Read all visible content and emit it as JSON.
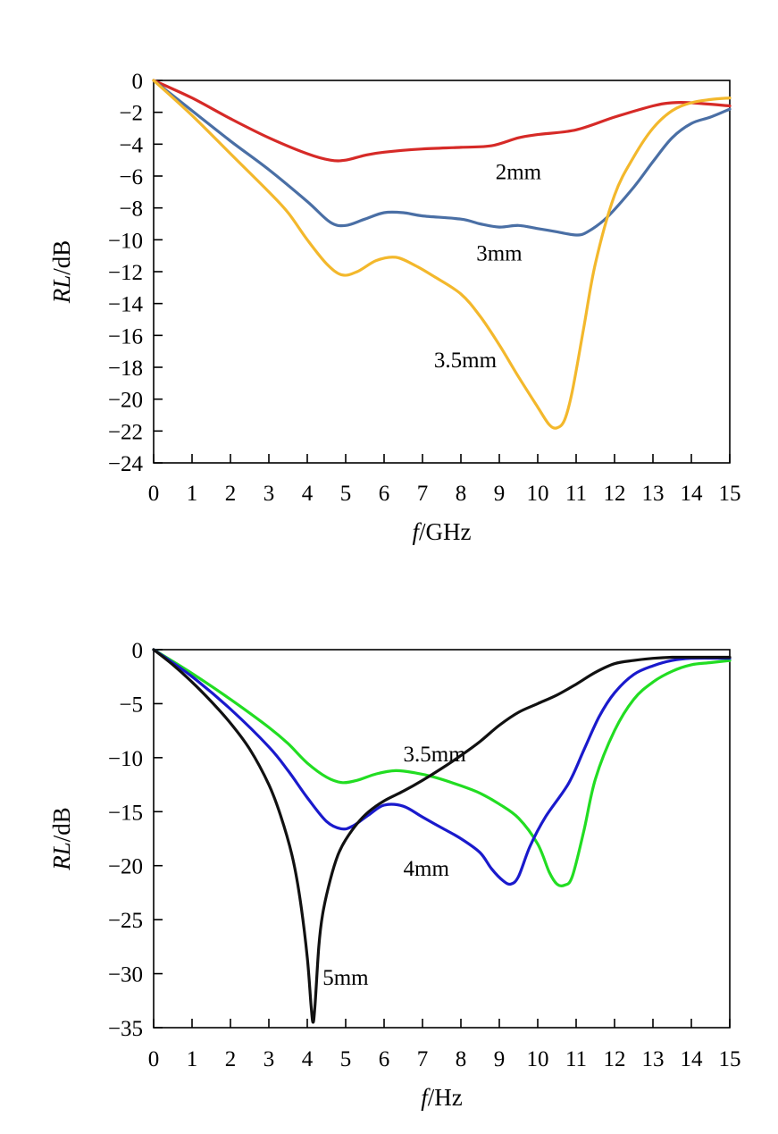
{
  "chart_data": [
    {
      "type": "line",
      "title": "",
      "xlabel_italic": "f",
      "xlabel_rest": "/GHz",
      "ylabel_italic": "RL",
      "ylabel_rest": "/dB",
      "xlim": [
        0,
        15
      ],
      "ylim": [
        -24,
        0
      ],
      "xticks": [
        "0",
        "1",
        "2",
        "3",
        "4",
        "5",
        "6",
        "7",
        "8",
        "9",
        "10",
        "11",
        "12",
        "13",
        "14",
        "15"
      ],
      "yticks": [
        "0",
        "−2",
        "−4",
        "−6",
        "−8",
        "−10",
        "−12",
        "−14",
        "−16",
        "−18",
        "−20",
        "−22",
        "−24"
      ],
      "yticks_values": [
        0,
        -2,
        -4,
        -6,
        -8,
        -10,
        -12,
        -14,
        -16,
        -18,
        -20,
        -22,
        -24
      ],
      "grid": false,
      "series": [
        {
          "name": "2mm",
          "color": "#d62a27",
          "label_at": [
            8.9,
            -5.7
          ],
          "x": [
            0,
            1,
            2,
            3,
            4,
            4.6,
            5,
            5.5,
            6,
            7,
            8,
            8.8,
            9.5,
            10,
            11,
            12,
            13,
            13.5,
            14,
            15
          ],
          "y": [
            0,
            -1.1,
            -2.4,
            -3.6,
            -4.6,
            -5.0,
            -5.0,
            -4.7,
            -4.5,
            -4.3,
            -4.2,
            -4.1,
            -3.6,
            -3.4,
            -3.1,
            -2.3,
            -1.6,
            -1.4,
            -1.4,
            -1.6
          ]
        },
        {
          "name": "3mm",
          "color": "#4a6fa5",
          "label_at": [
            8.4,
            -10.8
          ],
          "x": [
            0,
            1,
            2,
            3,
            4,
            4.6,
            5,
            5.5,
            6,
            6.5,
            7,
            8,
            8.5,
            9,
            9.5,
            10,
            10.5,
            11,
            11.3,
            11.8,
            12.5,
            13,
            13.5,
            14,
            14.5,
            15
          ],
          "y": [
            0,
            -1.9,
            -3.8,
            -5.6,
            -7.6,
            -8.9,
            -9.1,
            -8.7,
            -8.3,
            -8.3,
            -8.5,
            -8.7,
            -9.0,
            -9.2,
            -9.1,
            -9.3,
            -9.5,
            -9.7,
            -9.5,
            -8.6,
            -6.7,
            -5.1,
            -3.6,
            -2.7,
            -2.3,
            -1.8
          ]
        },
        {
          "name": "3.5mm",
          "color": "#f3b82c",
          "label_at": [
            7.3,
            -17.5
          ],
          "x": [
            0,
            1,
            2,
            3,
            3.5,
            4,
            4.5,
            4.9,
            5.3,
            5.8,
            6.3,
            6.8,
            7.3,
            8,
            8.5,
            9,
            9.5,
            10,
            10.3,
            10.5,
            10.7,
            10.9,
            11.2,
            11.5,
            12,
            12.5,
            13,
            13.5,
            14,
            14.5,
            15
          ],
          "y": [
            0,
            -2.2,
            -4.6,
            -7.0,
            -8.3,
            -10.0,
            -11.5,
            -12.2,
            -12.0,
            -11.3,
            -11.1,
            -11.6,
            -12.3,
            -13.4,
            -14.8,
            -16.6,
            -18.6,
            -20.5,
            -21.6,
            -21.8,
            -21.3,
            -19.5,
            -15.5,
            -11.5,
            -7.2,
            -4.8,
            -3.0,
            -1.9,
            -1.4,
            -1.2,
            -1.1
          ]
        }
      ]
    },
    {
      "type": "line",
      "title": "",
      "xlabel_italic": "f",
      "xlabel_rest": "/Hz",
      "ylabel_italic": "RL",
      "ylabel_rest": "/dB",
      "xlim": [
        0,
        15
      ],
      "ylim": [
        -35,
        0
      ],
      "xticks": [
        "0",
        "1",
        "2",
        "3",
        "4",
        "5",
        "6",
        "7",
        "8",
        "9",
        "10",
        "11",
        "12",
        "13",
        "14",
        "15"
      ],
      "yticks": [
        "0",
        "−5",
        "−10",
        "−15",
        "−20",
        "−25",
        "−30",
        "−35"
      ],
      "yticks_values": [
        0,
        -5,
        -10,
        -15,
        -20,
        -25,
        -30,
        -35
      ],
      "grid": false,
      "series": [
        {
          "name": "3.5mm",
          "color": "#22dd22",
          "label_at": [
            6.5,
            -9.6
          ],
          "x": [
            0,
            1,
            2,
            3,
            3.5,
            4,
            4.5,
            4.9,
            5.3,
            5.8,
            6.3,
            6.8,
            7.3,
            8,
            8.5,
            9,
            9.5,
            10,
            10.3,
            10.5,
            10.7,
            10.9,
            11.2,
            11.5,
            12,
            12.5,
            13,
            13.5,
            14,
            14.5,
            15
          ],
          "y": [
            0,
            -2.2,
            -4.6,
            -7.2,
            -8.7,
            -10.5,
            -11.8,
            -12.3,
            -12.1,
            -11.5,
            -11.2,
            -11.4,
            -11.8,
            -12.6,
            -13.3,
            -14.3,
            -15.6,
            -18.0,
            -20.6,
            -21.7,
            -21.8,
            -21.0,
            -16.8,
            -12.0,
            -7.5,
            -4.6,
            -3.0,
            -2.0,
            -1.4,
            -1.2,
            -1.0
          ]
        },
        {
          "name": "4mm",
          "color": "#1a1acc",
          "label_at": [
            6.5,
            -20.2
          ],
          "x": [
            0,
            1,
            2,
            3,
            3.5,
            4,
            4.5,
            4.9,
            5.2,
            5.6,
            6,
            6.5,
            7,
            7.5,
            8,
            8.5,
            8.8,
            9.1,
            9.3,
            9.5,
            9.8,
            10.2,
            10.8,
            11.2,
            11.6,
            12,
            12.5,
            13,
            13.5,
            14,
            15
          ],
          "y": [
            0,
            -2.5,
            -5.5,
            -9.0,
            -11.2,
            -13.7,
            -15.9,
            -16.6,
            -16.3,
            -15.3,
            -14.4,
            -14.5,
            -15.5,
            -16.5,
            -17.5,
            -18.8,
            -20.3,
            -21.4,
            -21.7,
            -21.0,
            -18.2,
            -15.5,
            -12.4,
            -9.3,
            -6.2,
            -4.0,
            -2.3,
            -1.5,
            -1.0,
            -0.8,
            -0.8
          ]
        },
        {
          "name": "5mm",
          "color": "#111111",
          "label_at": [
            4.4,
            -30.3
          ],
          "x": [
            0,
            0.5,
            1,
            1.5,
            2,
            2.5,
            3,
            3.3,
            3.6,
            3.8,
            4.0,
            4.1,
            4.15,
            4.2,
            4.3,
            4.4,
            4.6,
            4.8,
            5.0,
            5.3,
            5.6,
            6,
            6.5,
            7,
            7.5,
            8,
            8.5,
            9,
            9.5,
            10,
            10.5,
            11,
            11.5,
            12,
            12.5,
            13,
            13.5,
            14,
            14.5,
            15
          ],
          "y": [
            0,
            -1.4,
            -3.0,
            -4.8,
            -6.8,
            -9.2,
            -12.5,
            -15.3,
            -19.0,
            -22.8,
            -28.5,
            -33.0,
            -34.5,
            -33.0,
            -27.5,
            -24.5,
            -21.3,
            -19.0,
            -17.6,
            -16.1,
            -15.0,
            -14.0,
            -13.1,
            -12.1,
            -11.0,
            -9.8,
            -8.5,
            -7.0,
            -5.8,
            -5.0,
            -4.2,
            -3.2,
            -2.1,
            -1.3,
            -1.0,
            -0.8,
            -0.7,
            -0.7,
            -0.7,
            -0.7
          ]
        }
      ]
    }
  ]
}
